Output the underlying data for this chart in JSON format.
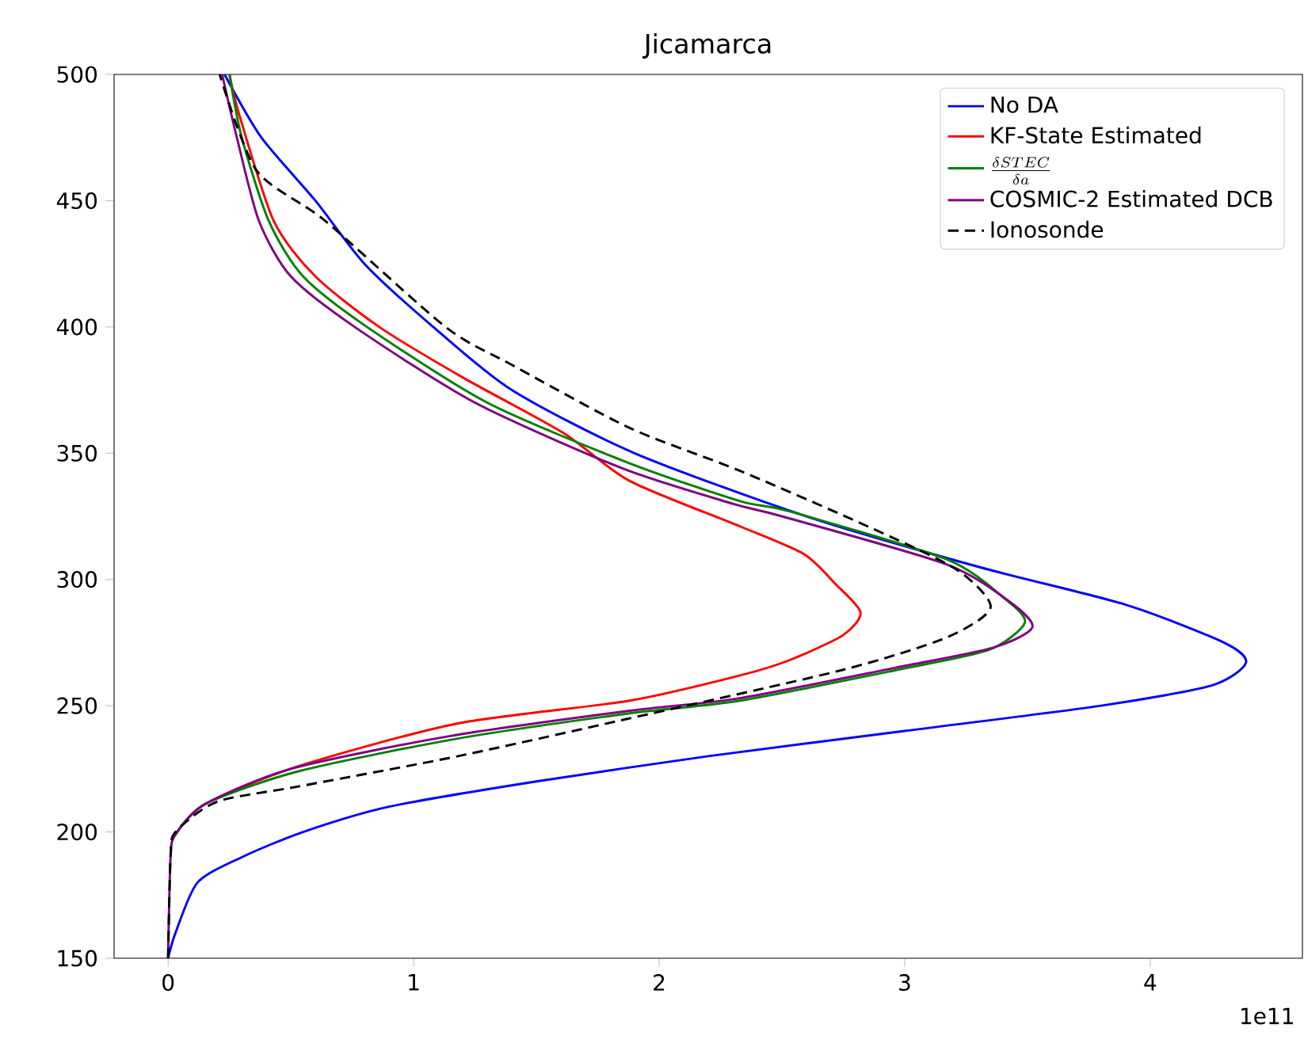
{
  "chart_data": {
    "type": "line",
    "title": "Jicamarca",
    "xlim": [
      -0.22,
      4.62
    ],
    "xticks": [
      0,
      1,
      2,
      3,
      4
    ],
    "ylim": [
      150,
      500
    ],
    "yticks": [
      150,
      200,
      250,
      300,
      350,
      400,
      450,
      500
    ],
    "annotations": [
      "1e11"
    ],
    "legend": "top right",
    "grid": false,
    "marker": "none",
    "series": [
      {
        "name": "No DA",
        "color": "#0000ff",
        "line_style": "solid",
        "x": [
          0,
          0.03,
          0.12,
          0.3,
          0.55,
          0.9,
          1.5,
          2.2,
          3.0,
          3.8,
          4.25,
          4.39,
          4.3,
          3.9,
          3.3,
          2.6,
          1.9,
          1.4,
          1.08,
          0.8,
          0.6,
          0.38,
          0.23
        ],
        "values": [
          150,
          160,
          180,
          190,
          200,
          210,
          220,
          230,
          240,
          250,
          258,
          267,
          275,
          290,
          305,
          325,
          350,
          375,
          400,
          425,
          450,
          475,
          500
        ]
      },
      {
        "name": "KF-State Estimated",
        "color": "#ff0000",
        "line_style": "solid",
        "x": [
          0.03,
          0.15,
          0.53,
          1.18,
          1.88,
          2.33,
          2.53,
          2.75,
          2.82,
          2.72,
          2.59,
          2.33,
          1.88,
          1.61,
          1.2,
          0.86,
          0.6,
          0.43,
          0.29,
          0.25
        ],
        "values": [
          199,
          211,
          226,
          243,
          252,
          262,
          268,
          278,
          287,
          298,
          310,
          321,
          339,
          358,
          380,
          400,
          420,
          442,
          484,
          500
        ]
      },
      {
        "name": "\\frac{\\delta STEC}{\\delta a}",
        "color": "#008000",
        "line_style": "solid",
        "x": [
          0.03,
          0.15,
          0.53,
          1.18,
          1.88,
          2.33,
          2.96,
          3.34,
          3.49,
          3.4,
          3.17,
          2.53,
          2.33,
          1.88,
          1.3,
          0.81,
          0.55,
          0.41,
          0.3,
          0.25
        ],
        "values": [
          199,
          211,
          224,
          237,
          247,
          252,
          264,
          272,
          283,
          293,
          308,
          327,
          331,
          346,
          370,
          400,
          420,
          442,
          475,
          500
        ]
      },
      {
        "name": "COSMIC-2 Estimated DCB",
        "color": "#800080",
        "line_style": "solid",
        "x": [
          0,
          0.01,
          0.03,
          0.15,
          0.5,
          1.15,
          1.88,
          2.33,
          2.96,
          3.36,
          3.52,
          3.43,
          3.17,
          2.5,
          2.3,
          1.85,
          1.25,
          0.76,
          0.5,
          0.37,
          0.28,
          0.22
        ],
        "values": [
          150,
          190,
          199,
          211,
          225,
          238,
          248,
          253,
          265,
          273,
          281,
          291,
          306,
          325,
          330,
          344,
          370,
          400,
          420,
          442,
          475,
          500
        ]
      },
      {
        "name": "Ionosonde",
        "color": "#000000",
        "line_style": "dashed",
        "x": [
          0,
          0.01,
          0.03,
          0.2,
          0.53,
          1.18,
          1.88,
          2.74,
          3.17,
          3.35,
          3.21,
          2.85,
          2.33,
          1.88,
          1.4,
          1.13,
          0.64,
          0.36,
          0.21
        ],
        "values": [
          150,
          190,
          200,
          212,
          218,
          230,
          245,
          264,
          277,
          289,
          304,
          321,
          343,
          360,
          385,
          400,
          442,
          462,
          500
        ]
      }
    ]
  }
}
